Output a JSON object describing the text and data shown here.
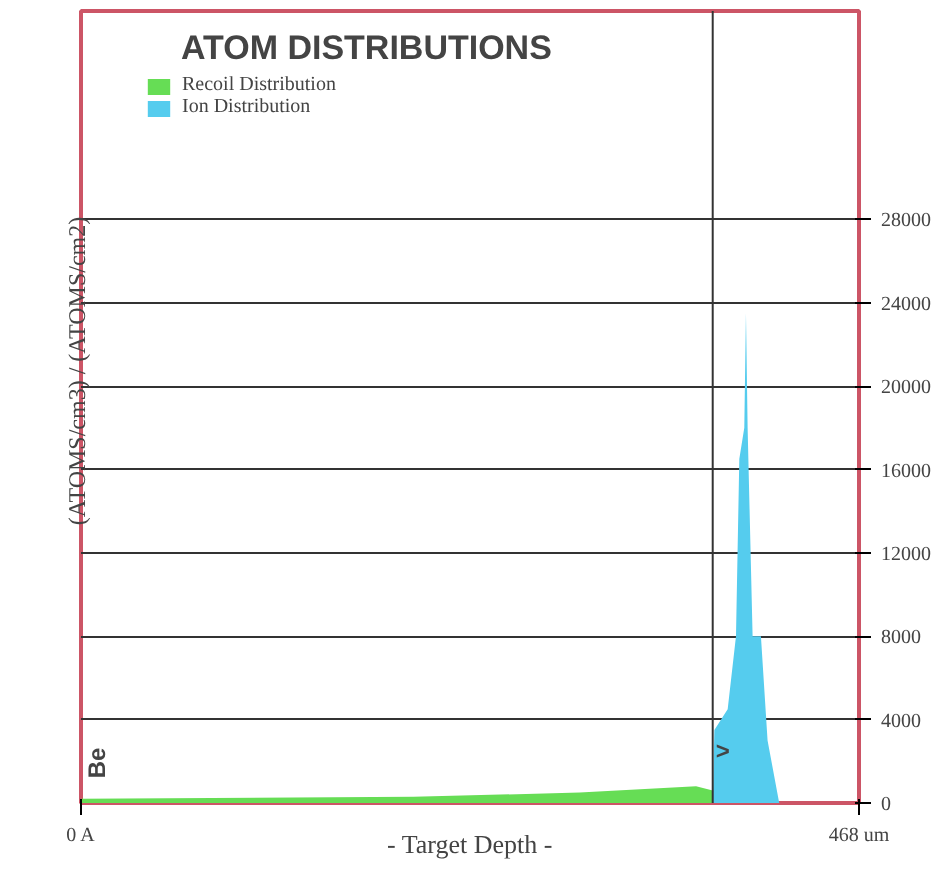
{
  "chart_data": {
    "type": "area",
    "title": "ATOM DISTRIBUTIONS",
    "xlabel": "- Target Depth -",
    "ylabel": "(ATOMS/cm3) / (ATOMS/cm2)",
    "xlim": [
      0,
      468
    ],
    "xticks": [
      {
        "value": 0,
        "label": "0 A"
      },
      {
        "value": 468,
        "label": "468 um"
      }
    ],
    "ylim": [
      0,
      38000
    ],
    "yticks": [
      0,
      4000,
      8000,
      12000,
      16000,
      20000,
      24000,
      28000
    ],
    "grid": "y",
    "legend": "top left",
    "ref_lines": [
      {
        "axis": "x",
        "value": 380,
        "label": null,
        "color": "#333333"
      }
    ],
    "annotations": [
      "Be",
      {
        "text": ">",
        "x": 386,
        "y": 2500
      }
    ],
    "series": [
      {
        "name": "Recoil Distribution",
        "color": "#66dd55",
        "x": [
          0,
          200,
          300,
          370,
          380
        ],
        "values": [
          200,
          300,
          500,
          800,
          600
        ]
      },
      {
        "name": "Ion Distribution",
        "color": "#55ccee",
        "x": [
          380,
          381,
          389,
          394,
          396,
          399,
          400,
          401,
          404,
          409,
          413,
          420
        ],
        "values": [
          0,
          3500,
          4500,
          8000,
          16500,
          18000,
          23500,
          18000,
          8000,
          8000,
          3000,
          0
        ]
      }
    ]
  }
}
